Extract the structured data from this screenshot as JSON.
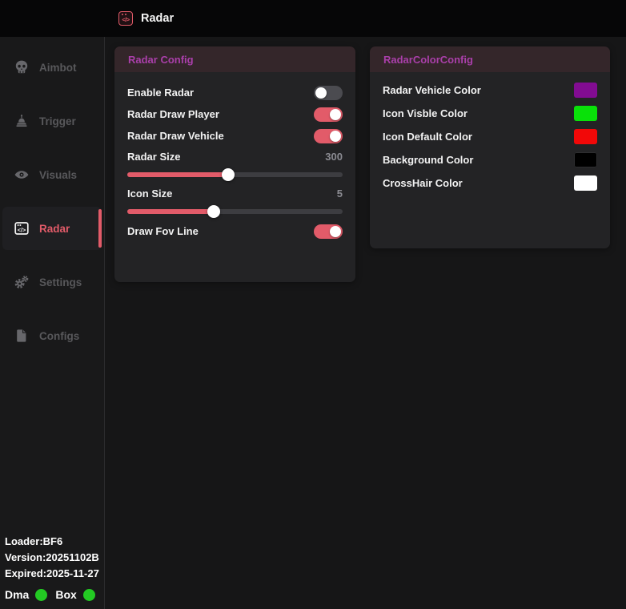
{
  "window": {
    "title": "Radar",
    "title_icon": "code-window-icon",
    "icon_glyph": "</>"
  },
  "sidebar": {
    "items": [
      {
        "label": "Aimbot",
        "icon": "skull-icon",
        "selected": false
      },
      {
        "label": "Trigger",
        "icon": "landmine-icon",
        "selected": false
      },
      {
        "label": "Visuals",
        "icon": "eye-icon",
        "selected": false
      },
      {
        "label": "Radar",
        "icon": "code-window-icon",
        "selected": true
      },
      {
        "label": "Settings",
        "icon": "gears-icon",
        "selected": false
      },
      {
        "label": "Configs",
        "icon": "file-icon",
        "selected": false
      }
    ],
    "footer": {
      "loader": "Loader:BF6",
      "version": "Version:20251102B",
      "expired": "Expired:2025-11-27",
      "statuses": [
        {
          "label": "Dma",
          "state": "on",
          "color": "#23ca23"
        },
        {
          "label": "Box",
          "state": "on",
          "color": "#23ca23"
        }
      ]
    }
  },
  "panels": [
    {
      "title": "Radar Config",
      "controls": [
        {
          "type": "toggle",
          "label": "Enable Radar",
          "value": false
        },
        {
          "type": "toggle",
          "label": "Radar Draw Player",
          "value": true
        },
        {
          "type": "toggle",
          "label": "Radar Draw Vehicle",
          "value": true
        },
        {
          "type": "slider",
          "label": "Radar Size",
          "value": "300",
          "percent": 47
        },
        {
          "type": "slider",
          "label": "Icon Size",
          "value": "5",
          "percent": 40
        },
        {
          "type": "toggle",
          "label": "Draw Fov Line",
          "value": true
        }
      ]
    },
    {
      "title": "RadarColorConfig",
      "controls": [
        {
          "type": "color",
          "label": "Radar Vehicle Color",
          "color": "#820c92"
        },
        {
          "type": "color",
          "label": "Icon Visble Color",
          "color": "#09e109"
        },
        {
          "type": "color",
          "label": "Icon Default Color",
          "color": "#f20808"
        },
        {
          "type": "color",
          "label": "Background Color",
          "color": "#000000"
        },
        {
          "type": "color",
          "label": "CrossHair Color",
          "color": "#ffffff"
        }
      ]
    }
  ],
  "colors": {
    "accent": "#e25b69",
    "panel_header_title": "#aa3faa",
    "toggle_off": "#4b4b50",
    "status_green": "#23ca23"
  }
}
